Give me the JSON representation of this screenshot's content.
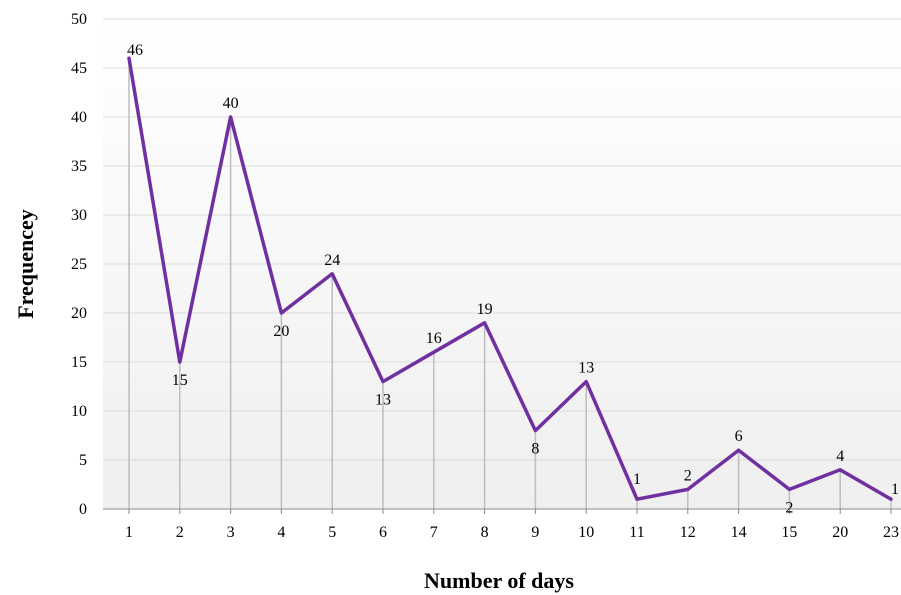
{
  "chart_data": {
    "type": "line",
    "xlabel": "Number of days",
    "ylabel": "Frequencey",
    "ylim": [
      0,
      50
    ],
    "yticks": [
      0,
      5,
      10,
      15,
      20,
      25,
      30,
      35,
      40,
      45,
      50
    ],
    "categories": [
      "1",
      "2",
      "3",
      "4",
      "5",
      "6",
      "7",
      "8",
      "9",
      "10",
      "11",
      "12",
      "14",
      "15",
      "20",
      "23"
    ],
    "series": [
      {
        "values": [
          46,
          15,
          40,
          20,
          24,
          13,
          16,
          19,
          8,
          13,
          1,
          2,
          6,
          2,
          4,
          1
        ]
      }
    ],
    "line_color": "#7030a0",
    "grid": true,
    "drop_lines": true,
    "legend": "none"
  }
}
